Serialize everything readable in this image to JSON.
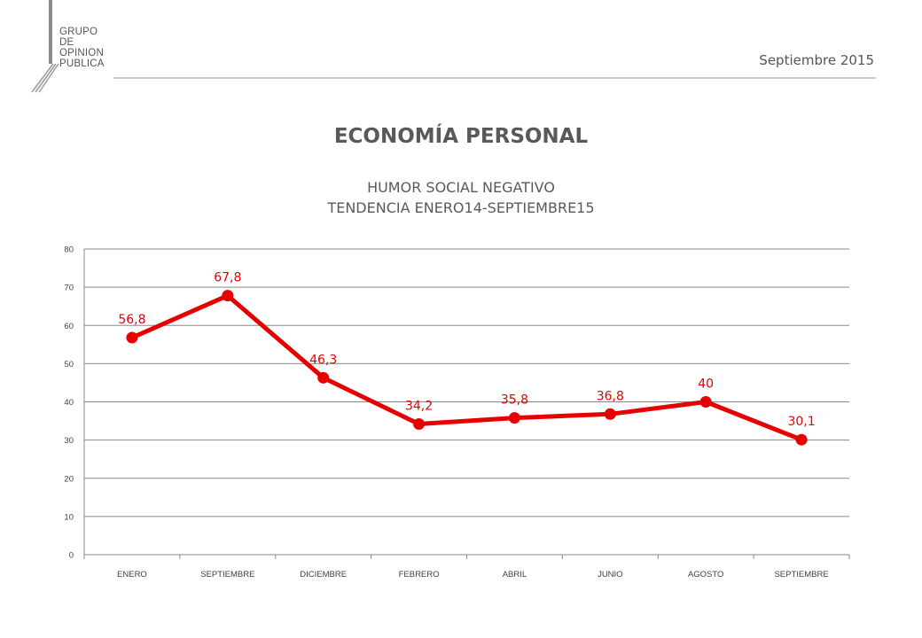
{
  "header": {
    "logo_lines": [
      "GRUPO",
      "DE",
      "OPINION",
      "PUBLICA"
    ],
    "date": "Septiembre 2015"
  },
  "title": "ECONOMÍA PERSONAL",
  "subtitle_lines": [
    "HUMOR SOCIAL NEGATIVO",
    "TENDENCIA ENERO14-SEPTIEMBRE15"
  ],
  "colors": {
    "series": "#e60000",
    "label": "#e60000",
    "text": "#595959",
    "grid": "#888888"
  },
  "chart_data": {
    "type": "line",
    "categories": [
      "ENERO",
      "SEPTIEMBRE",
      "DICIEMBRE",
      "FEBRERO",
      "ABRIL",
      "JUNIO",
      "AGOSTO",
      "SEPTIEMBRE"
    ],
    "series": [
      {
        "values": [
          56.8,
          67.8,
          46.3,
          34.2,
          35.8,
          36.8,
          40,
          30.1
        ],
        "labels": [
          "56,8",
          "67,8",
          "46,3",
          "34,2",
          "35,8",
          "36,8",
          "40",
          "30,1"
        ]
      }
    ],
    "ylim": [
      0,
      80
    ],
    "yticks": [
      0,
      10,
      20,
      30,
      40,
      50,
      60,
      70,
      80
    ],
    "xlabel": "",
    "ylabel": "",
    "grid": true,
    "legend": "none"
  }
}
